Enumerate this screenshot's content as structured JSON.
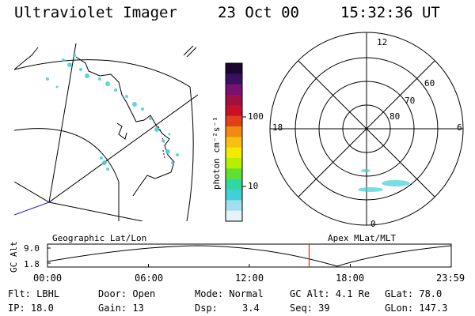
{
  "header": {
    "title": "Ultraviolet Imager",
    "date": "23 Oct 00",
    "time": "15:32:36 UT"
  },
  "colorbar": {
    "label": "photon cm⁻²s⁻¹",
    "ticks": [
      "100",
      "10"
    ],
    "colors": [
      "#1a0830",
      "#3a1060",
      "#7a1070",
      "#a01040",
      "#c8102a",
      "#e0401a",
      "#f08a10",
      "#f7c010",
      "#f2ea00",
      "#b8ee00",
      "#60e030",
      "#30d8a0",
      "#40d0d8",
      "#a0e0ee",
      "#e6f2f6"
    ]
  },
  "polar_plot": {
    "mlt_labels": [
      "12",
      "18",
      "6",
      "0"
    ],
    "lat_labels": [
      "60",
      "70",
      "80"
    ]
  },
  "timeline": {
    "left_label": "Geographic Lat/Lon",
    "right_label": "Apex MLat/MLT",
    "axis_title": "GC Alt",
    "y_ticks": [
      "9.0",
      "1.8"
    ],
    "x_ticks": [
      "00:00",
      "06:00",
      "12:00",
      "18:00",
      "23:59"
    ],
    "current_time_fraction": 0.648
  },
  "info": {
    "filter": "Flt: LBHL",
    "ip": "IP: 18.0",
    "door": "Door: Open",
    "gain": "Gain: 13",
    "mode": "Mode: Normal",
    "dsp_label": "Dsp:",
    "dsp_value": "3.4",
    "gc_alt": "GC Alt: 4.1 Re",
    "seq": "Seq: 39",
    "glat": "GLat: 78.0",
    "glon": "GLon: 147.3"
  }
}
